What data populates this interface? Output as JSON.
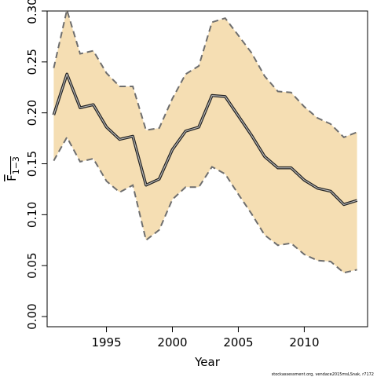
{
  "chart_data": {
    "type": "line",
    "xlabel": "Year",
    "ylabel": "F",
    "ylabel_subscript": "1−3",
    "xlim": [
      1990.5,
      2014.8
    ],
    "ylim": [
      -0.01,
      0.3
    ],
    "x_ticks": [
      1995,
      2000,
      2005,
      2010
    ],
    "y_ticks": [
      0.0,
      0.05,
      0.1,
      0.15,
      0.2,
      0.25,
      0.3
    ],
    "y_tick_labels": [
      "0.00",
      "0.05",
      "0.10",
      "0.15",
      "0.20",
      "0.25",
      "0.30"
    ],
    "grid": false,
    "legend": "none",
    "band_color": "#f5deb3",
    "bound_color": "#6e6e6e",
    "line_color": "#333333",
    "x": [
      1991,
      1992,
      1993,
      1994,
      1995,
      1996,
      1997,
      1998,
      1999,
      2000,
      2001,
      2002,
      2003,
      2004,
      2005,
      2006,
      2007,
      2008,
      2009,
      2010,
      2011,
      2012,
      2013,
      2014
    ],
    "series": [
      {
        "role": "estimate",
        "values": [
          0.198,
          0.238,
          0.205,
          0.208,
          0.186,
          0.174,
          0.177,
          0.129,
          0.135,
          0.164,
          0.182,
          0.186,
          0.217,
          0.216,
          0.197,
          0.178,
          0.157,
          0.146,
          0.146,
          0.134,
          0.126,
          0.123,
          0.11,
          0.114
        ]
      },
      {
        "role": "upper",
        "values": [
          0.244,
          0.301,
          0.258,
          0.261,
          0.239,
          0.226,
          0.226,
          0.183,
          0.185,
          0.214,
          0.238,
          0.246,
          0.289,
          0.293,
          0.276,
          0.259,
          0.236,
          0.221,
          0.22,
          0.206,
          0.195,
          0.189,
          0.176,
          0.181
        ]
      },
      {
        "role": "lower",
        "values": [
          0.153,
          0.176,
          0.152,
          0.155,
          0.133,
          0.122,
          0.129,
          0.075,
          0.085,
          0.115,
          0.127,
          0.127,
          0.147,
          0.14,
          0.12,
          0.101,
          0.08,
          0.07,
          0.072,
          0.061,
          0.055,
          0.054,
          0.043,
          0.046
        ]
      }
    ]
  },
  "credit": "stockassessment.org, vendace2015msLSnak, r7172"
}
